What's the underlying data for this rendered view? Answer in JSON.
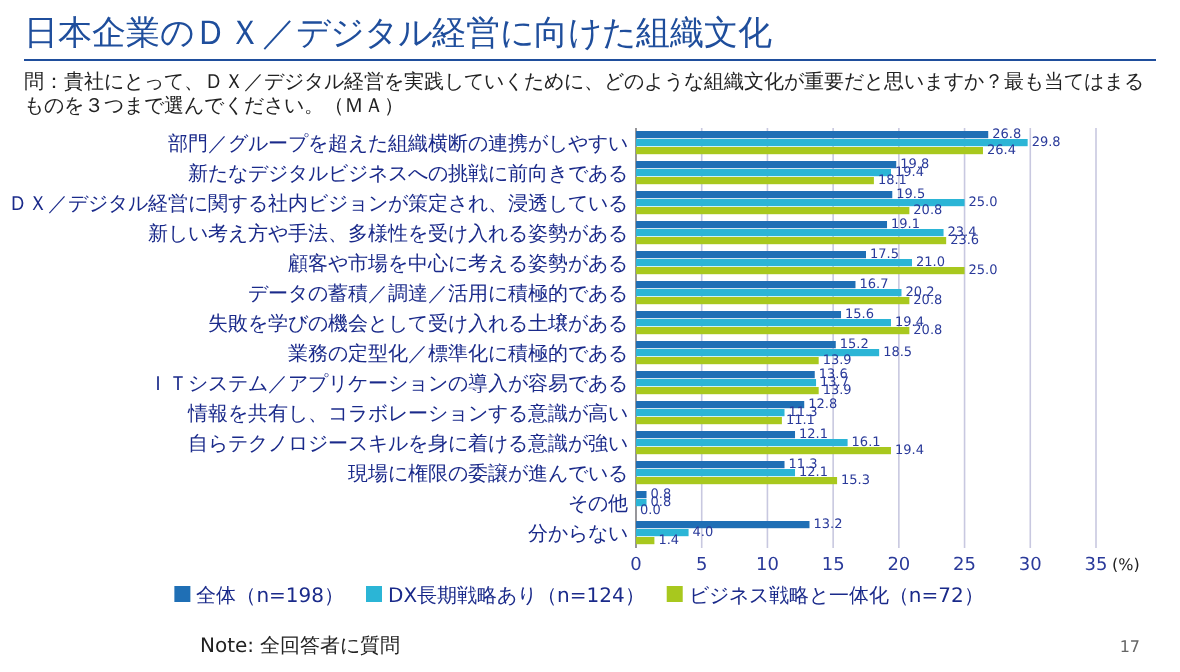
{
  "chart_data": {
    "type": "bar",
    "orientation": "horizontal",
    "title": "日本企業のＤＸ／デジタル経営に向けた組織文化",
    "subtitle": "問：貴社にとって、ＤＸ／デジタル経営を実践していくために、どのような組織文化が重要だと思いますか？最も当てはまるものを３つまで選んでください。（ＭＡ）",
    "xlabel": "(%)",
    "categories": [
      "部門／グループを超えた組織横断の連携がしやすい",
      "新たなデジタルビジネスへの挑戦に前向きである",
      "ＤＸ／デジタル経営に関する社内ビジョンが策定され、浸透している",
      "新しい考え方や手法、多様性を受け入れる姿勢がある",
      "顧客や市場を中心に考える姿勢がある",
      "データの蓄積／調達／活用に積極的である",
      "失敗を学びの機会として受け入れる土壌がある",
      "業務の定型化／標準化に積極的である",
      "ＩＴシステム／アプリケーションの導入が容易である",
      "情報を共有し、コラボレーションする意識が高い",
      "自らテクノロジースキルを身に着ける意識が強い",
      "現場に権限の委譲が進んでいる",
      "その他",
      "分からない"
    ],
    "series": [
      {
        "name": "全体（n=198）",
        "color": "#1f6fb5",
        "values": [
          26.8,
          19.8,
          19.5,
          19.1,
          17.5,
          16.7,
          15.6,
          15.2,
          13.6,
          12.8,
          12.1,
          11.3,
          0.8,
          13.2
        ],
        "value_labels": [
          "26.8",
          "19.8",
          "19.5",
          "19.1",
          "17.5",
          "16.7",
          "15.6",
          "15.2",
          "13.6",
          "12.8",
          "12.1",
          "11.3",
          "0.8",
          "13.2"
        ]
      },
      {
        "name": "DX長期戦略あり（n=124）",
        "color": "#2bb5d6",
        "values": [
          29.8,
          19.4,
          25.0,
          23.4,
          21.0,
          20.2,
          19.4,
          18.5,
          13.7,
          11.3,
          16.1,
          12.1,
          0.8,
          4.0
        ],
        "value_labels": [
          "29.8",
          "19.4",
          "25.0",
          "23.4",
          "21.0",
          "20.2",
          "19.4",
          "18.5",
          "13.7",
          "11.3",
          "16.1",
          "12.1",
          "0.8",
          "4.0"
        ]
      },
      {
        "name": "ビジネス戦略と一体化（n=72）",
        "color": "#a8c81e",
        "values": [
          26.4,
          18.1,
          20.8,
          23.6,
          25.0,
          20.8,
          20.8,
          13.9,
          13.9,
          11.1,
          19.4,
          15.3,
          0.0,
          1.4
        ],
        "value_labels": [
          "26.4",
          "18.1",
          "20.8",
          "23.6",
          "25.0",
          "20.8",
          "20.8",
          "13.9",
          "13.9",
          "11.1",
          "19.4",
          "15.3",
          "0.0",
          "1.4"
        ]
      }
    ],
    "xlim": [
      0,
      35
    ],
    "xticks": [
      0,
      5,
      10,
      15,
      20,
      25,
      30,
      35
    ],
    "grid": "x",
    "legend": "bottom",
    "annotations": [
      "Note: 全回答者に質問",
      "17"
    ]
  }
}
